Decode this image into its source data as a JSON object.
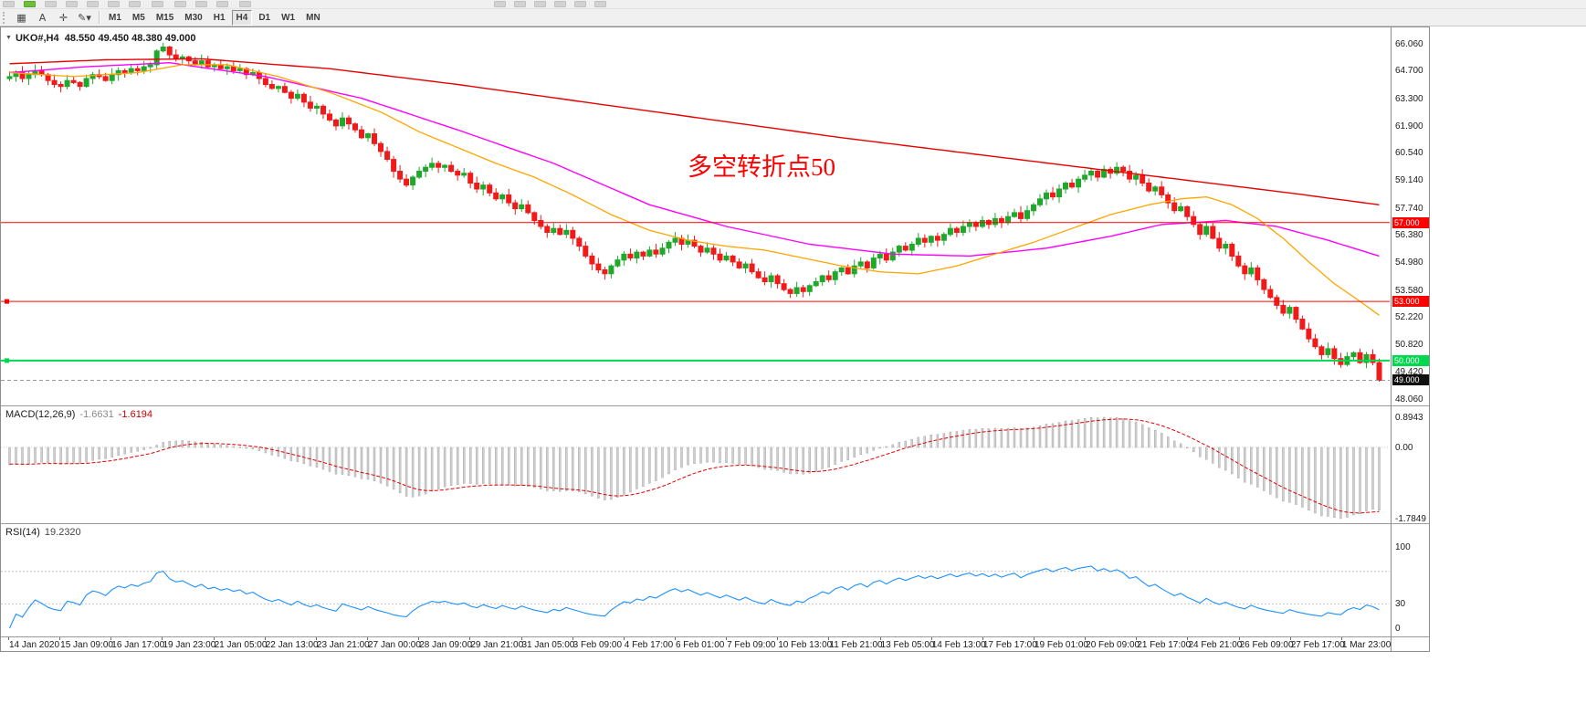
{
  "window": {
    "title_symbol": "UKO#,H4",
    "title_ohlc": "48.550 49.450 48.380 49.000"
  },
  "toolbar": {
    "tools": [
      {
        "name": "chart-grid",
        "glyph": "▦"
      },
      {
        "name": "text-label",
        "glyph": "A"
      },
      {
        "name": "crosshair",
        "glyph": "✛"
      },
      {
        "name": "draw-tools",
        "glyph": "✎▾"
      }
    ],
    "timeframes": [
      "M1",
      "M5",
      "M15",
      "M30",
      "H1",
      "H4",
      "D1",
      "W1",
      "MN"
    ],
    "active_timeframe": "H4"
  },
  "chart_data": {
    "type": "candlestick",
    "symbol": "UKO#",
    "timeframe": "H4",
    "current_ohlc": {
      "open": 48.55,
      "high": 49.45,
      "low": 48.38,
      "close": 49.0
    },
    "up_color": "#1fa82c",
    "down_color": "#f01a1a",
    "closes": [
      64.4,
      64.6,
      64.3,
      64.5,
      64.7,
      64.5,
      64.2,
      64.0,
      63.9,
      64.2,
      64.1,
      63.9,
      64.3,
      64.5,
      64.4,
      64.2,
      64.5,
      64.7,
      64.6,
      64.8,
      64.7,
      64.9,
      65.0,
      65.7,
      65.9,
      65.5,
      65.3,
      65.4,
      65.2,
      65.0,
      65.2,
      64.9,
      65.0,
      64.8,
      64.9,
      64.7,
      64.8,
      64.5,
      64.6,
      64.3,
      64.0,
      63.8,
      63.9,
      63.6,
      63.3,
      63.5,
      63.1,
      62.8,
      62.9,
      62.5,
      62.2,
      61.9,
      62.3,
      62.0,
      61.7,
      61.3,
      61.5,
      61.0,
      60.6,
      60.2,
      59.6,
      59.2,
      58.9,
      59.3,
      59.6,
      59.8,
      60.0,
      59.8,
      59.9,
      59.6,
      59.4,
      59.5,
      59.0,
      58.7,
      58.9,
      58.5,
      58.2,
      58.4,
      58.0,
      57.7,
      57.9,
      57.5,
      57.1,
      56.8,
      56.5,
      56.7,
      56.4,
      56.6,
      56.2,
      55.8,
      55.3,
      54.9,
      54.6,
      54.4,
      54.8,
      55.1,
      55.4,
      55.2,
      55.5,
      55.3,
      55.6,
      55.4,
      55.7,
      56.0,
      56.2,
      55.9,
      56.1,
      55.8,
      55.5,
      55.7,
      55.4,
      55.1,
      55.3,
      55.0,
      54.7,
      54.9,
      54.5,
      54.2,
      54.0,
      54.3,
      53.9,
      53.6,
      53.4,
      53.7,
      53.5,
      53.8,
      54.0,
      54.3,
      54.1,
      54.5,
      54.7,
      54.4,
      54.8,
      55.0,
      54.7,
      55.2,
      55.4,
      55.1,
      55.5,
      55.8,
      55.6,
      55.9,
      56.2,
      56.0,
      56.3,
      56.1,
      56.4,
      56.7,
      56.5,
      56.8,
      57.0,
      56.8,
      57.1,
      56.9,
      57.2,
      57.0,
      57.3,
      57.5,
      57.2,
      57.6,
      57.9,
      58.2,
      58.5,
      58.3,
      58.7,
      59.0,
      58.8,
      59.2,
      59.4,
      59.6,
      59.3,
      59.7,
      59.5,
      59.8,
      59.6,
      59.2,
      59.4,
      59.0,
      58.6,
      58.8,
      58.4,
      58.0,
      57.6,
      57.8,
      57.3,
      56.9,
      56.4,
      56.8,
      56.2,
      55.7,
      55.9,
      55.3,
      54.8,
      54.4,
      54.7,
      54.1,
      53.6,
      53.2,
      52.8,
      52.4,
      52.7,
      52.1,
      51.6,
      51.1,
      50.7,
      50.3,
      50.6,
      50.1,
      49.8,
      50.2,
      50.4,
      49.9,
      50.3,
      49.9,
      49.0
    ],
    "price_scale": [
      {
        "label": "66.060",
        "value": 66.06
      },
      {
        "label": "64.700",
        "value": 64.7
      },
      {
        "label": "63.300",
        "value": 63.3
      },
      {
        "label": "61.900",
        "value": 61.9
      },
      {
        "label": "60.540",
        "value": 60.54
      },
      {
        "label": "59.140",
        "value": 59.14
      },
      {
        "label": "57.740",
        "value": 57.74
      },
      {
        "label": "56.380",
        "value": 56.38
      },
      {
        "label": "54.980",
        "value": 54.98
      },
      {
        "label": "53.580",
        "value": 53.58
      },
      {
        "label": "52.220",
        "value": 52.22
      },
      {
        "label": "50.820",
        "value": 50.82
      },
      {
        "label": "49.420",
        "value": 49.42
      },
      {
        "label": "48.060",
        "value": 48.06
      }
    ],
    "ma_lines": [
      {
        "name": "ma-slow-red",
        "color": "#e60000",
        "width": 1.4,
        "anchors": [
          [
            0,
            65.05
          ],
          [
            15,
            65.25
          ],
          [
            30,
            65.3
          ],
          [
            50,
            64.8
          ],
          [
            70,
            64.0
          ],
          [
            90,
            63.1
          ],
          [
            110,
            62.2
          ],
          [
            130,
            61.3
          ],
          [
            150,
            60.5
          ],
          [
            170,
            59.7
          ],
          [
            185,
            59.1
          ],
          [
            200,
            58.5
          ],
          [
            214,
            57.9
          ]
        ]
      },
      {
        "name": "ma-mid-magenta",
        "color": "#ff00ff",
        "width": 1.4,
        "anchors": [
          [
            0,
            64.6
          ],
          [
            12,
            64.9
          ],
          [
            25,
            65.1
          ],
          [
            40,
            64.4
          ],
          [
            55,
            63.3
          ],
          [
            70,
            61.7
          ],
          [
            85,
            60.0
          ],
          [
            100,
            57.9
          ],
          [
            112,
            56.8
          ],
          [
            125,
            55.9
          ],
          [
            138,
            55.4
          ],
          [
            150,
            55.3
          ],
          [
            162,
            55.7
          ],
          [
            172,
            56.3
          ],
          [
            180,
            56.9
          ],
          [
            190,
            57.1
          ],
          [
            198,
            56.8
          ],
          [
            206,
            56.1
          ],
          [
            214,
            55.3
          ]
        ]
      },
      {
        "name": "ma-fast-orange",
        "color": "#ffa500",
        "width": 1.3,
        "anchors": [
          [
            0,
            64.6
          ],
          [
            10,
            64.4
          ],
          [
            20,
            64.6
          ],
          [
            27,
            65.0
          ],
          [
            34,
            65.0
          ],
          [
            42,
            64.4
          ],
          [
            50,
            63.6
          ],
          [
            58,
            62.6
          ],
          [
            64,
            61.6
          ],
          [
            70,
            60.8
          ],
          [
            76,
            60.0
          ],
          [
            82,
            59.3
          ],
          [
            88,
            58.4
          ],
          [
            94,
            57.4
          ],
          [
            100,
            56.6
          ],
          [
            106,
            56.1
          ],
          [
            112,
            55.8
          ],
          [
            118,
            55.6
          ],
          [
            124,
            55.2
          ],
          [
            130,
            54.8
          ],
          [
            136,
            54.5
          ],
          [
            142,
            54.4
          ],
          [
            148,
            54.8
          ],
          [
            154,
            55.4
          ],
          [
            160,
            56.0
          ],
          [
            166,
            56.7
          ],
          [
            172,
            57.4
          ],
          [
            178,
            57.9
          ],
          [
            183,
            58.2
          ],
          [
            187,
            58.3
          ],
          [
            191,
            57.9
          ],
          [
            195,
            57.2
          ],
          [
            199,
            56.2
          ],
          [
            203,
            55.0
          ],
          [
            207,
            53.9
          ],
          [
            211,
            53.0
          ],
          [
            214,
            52.3
          ]
        ]
      }
    ],
    "hlines": [
      {
        "value": 57.0,
        "label": "57.000",
        "color": "#ff0000",
        "width": 1,
        "handle": false
      },
      {
        "value": 53.0,
        "label": "53.000",
        "color": "#ff0000",
        "width": 1,
        "handle": true
      },
      {
        "value": 50.0,
        "label": "50.000",
        "color": "#00d94e",
        "width": 2,
        "handle": true
      }
    ],
    "last_price": {
      "value": 49.0,
      "label": "49.000",
      "tag_color": "#101010"
    },
    "annotation": {
      "text": "多空转折点50",
      "color": "#ff0000"
    },
    "x_labels": [
      "14 Jan 2020",
      "15 Jan 09:00",
      "16 Jan 17:00",
      "19 Jan 23:00",
      "21 Jan 05:00",
      "22 Jan 13:00",
      "23 Jan 21:00",
      "27 Jan 00:00",
      "28 Jan 09:00",
      "29 Jan 21:00",
      "31 Jan 05:00",
      "3 Feb 09:00",
      "4 Feb 17:00",
      "6 Feb 01:00",
      "7 Feb 09:00",
      "10 Feb 13:00",
      "11 Feb 21:00",
      "13 Feb 05:00",
      "14 Feb 13:00",
      "17 Feb 17:00",
      "19 Feb 01:00",
      "20 Feb 09:00",
      "21 Feb 17:00",
      "24 Feb 21:00",
      "26 Feb 09:00",
      "27 Feb 17:00",
      "1 Mar 23:00"
    ],
    "indicators": {
      "macd": {
        "label": "MACD(12,26,9)",
        "value_main": "-1.6631",
        "value_signal": "-1.6194",
        "fast": 12,
        "slow": 26,
        "signal": 9,
        "scale": [
          {
            "label": "0.8943",
            "value": 0.8943
          },
          {
            "label": "0.00",
            "value": 0
          },
          {
            "label": "-1.7849",
            "value": -1.7849
          }
        ],
        "histogram_color": "#cfcfcf",
        "histogram_border": "#9b9b9b",
        "signal_color": "#e30000"
      },
      "rsi": {
        "label": "RSI(14)",
        "value": "19.2320",
        "period": 14,
        "scale": [
          {
            "label": "100",
            "value": 100
          },
          {
            "label": "30",
            "value": 30
          },
          {
            "label": "0",
            "value": 0
          }
        ],
        "levels": [
          70,
          30
        ],
        "line_color": "#1e90ff"
      }
    }
  }
}
